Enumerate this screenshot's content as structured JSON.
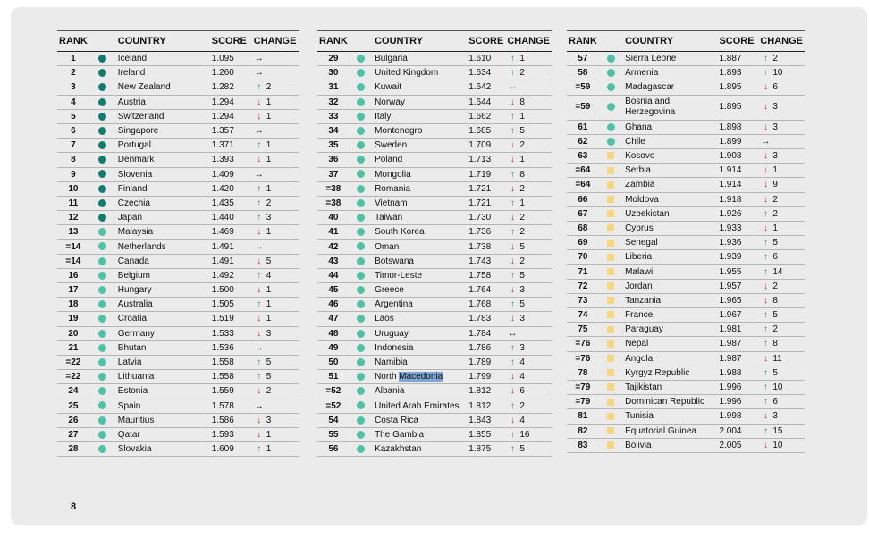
{
  "headers": {
    "rank": "RANK",
    "country": "COUNTRY",
    "score": "SCORE",
    "change": "CHANGE"
  },
  "colors": {
    "dark": "#157a6e",
    "mid": "#4fc1a6",
    "yellow": "#f6d77f",
    "up": "#2e8b57",
    "down": "#c62828"
  },
  "icons": {
    "up": "↑",
    "down": "↓",
    "same": "↔"
  },
  "page_number": "8",
  "columns": [
    [
      {
        "rank": "1",
        "country": "Iceland",
        "score": "1.095",
        "dir": "same",
        "change": "",
        "marker": "dark"
      },
      {
        "rank": "2",
        "country": "Ireland",
        "score": "1.260",
        "dir": "same",
        "change": "",
        "marker": "dark"
      },
      {
        "rank": "3",
        "country": "New Zealand",
        "score": "1.282",
        "dir": "up",
        "change": "2",
        "marker": "dark"
      },
      {
        "rank": "4",
        "country": "Austria",
        "score": "1.294",
        "dir": "down",
        "change": "1",
        "marker": "dark"
      },
      {
        "rank": "5",
        "country": "Switzerland",
        "score": "1.294",
        "dir": "down",
        "change": "1",
        "marker": "dark"
      },
      {
        "rank": "6",
        "country": "Singapore",
        "score": "1.357",
        "dir": "same",
        "change": "",
        "marker": "dark"
      },
      {
        "rank": "7",
        "country": "Portugal",
        "score": "1.371",
        "dir": "up",
        "change": "1",
        "marker": "dark"
      },
      {
        "rank": "8",
        "country": "Denmark",
        "score": "1.393",
        "dir": "down",
        "change": "1",
        "marker": "dark"
      },
      {
        "rank": "9",
        "country": "Slovenia",
        "score": "1.409",
        "dir": "same",
        "change": "",
        "marker": "dark"
      },
      {
        "rank": "10",
        "country": "Finland",
        "score": "1.420",
        "dir": "up",
        "change": "1",
        "marker": "dark"
      },
      {
        "rank": "11",
        "country": "Czechia",
        "score": "1.435",
        "dir": "up",
        "change": "2",
        "marker": "dark"
      },
      {
        "rank": "12",
        "country": "Japan",
        "score": "1.440",
        "dir": "up",
        "change": "3",
        "marker": "dark"
      },
      {
        "rank": "13",
        "country": "Malaysia",
        "score": "1.469",
        "dir": "down",
        "change": "1",
        "marker": "mid"
      },
      {
        "rank": "=14",
        "country": "Netherlands",
        "score": "1.491",
        "dir": "same",
        "change": "",
        "marker": "mid"
      },
      {
        "rank": "=14",
        "country": "Canada",
        "score": "1.491",
        "dir": "down",
        "change": "5",
        "marker": "mid"
      },
      {
        "rank": "16",
        "country": "Belgium",
        "score": "1.492",
        "dir": "up",
        "change": "4",
        "marker": "mid"
      },
      {
        "rank": "17",
        "country": "Hungary",
        "score": "1.500",
        "dir": "down",
        "change": "1",
        "marker": "mid"
      },
      {
        "rank": "18",
        "country": "Australia",
        "score": "1.505",
        "dir": "up",
        "change": "1",
        "marker": "mid"
      },
      {
        "rank": "19",
        "country": "Croatia",
        "score": "1.519",
        "dir": "down",
        "change": "1",
        "marker": "mid"
      },
      {
        "rank": "20",
        "country": "Germany",
        "score": "1.533",
        "dir": "down",
        "change": "3",
        "marker": "mid"
      },
      {
        "rank": "21",
        "country": "Bhutan",
        "score": "1.536",
        "dir": "same",
        "change": "",
        "marker": "mid"
      },
      {
        "rank": "=22",
        "country": "Latvia",
        "score": "1.558",
        "dir": "up",
        "change": "5",
        "marker": "mid"
      },
      {
        "rank": "=22",
        "country": "Lithuania",
        "score": "1.558",
        "dir": "up",
        "change": "5",
        "marker": "mid"
      },
      {
        "rank": "24",
        "country": "Estonia",
        "score": "1.559",
        "dir": "down",
        "change": "2",
        "marker": "mid"
      },
      {
        "rank": "25",
        "country": "Spain",
        "score": "1.578",
        "dir": "same",
        "change": "",
        "marker": "mid"
      },
      {
        "rank": "26",
        "country": "Mauritius",
        "score": "1.586",
        "dir": "down",
        "change": "3",
        "marker": "mid"
      },
      {
        "rank": "27",
        "country": "Qatar",
        "score": "1.593",
        "dir": "down",
        "change": "1",
        "marker": "mid"
      },
      {
        "rank": "28",
        "country": "Slovakia",
        "score": "1.609",
        "dir": "up",
        "change": "1",
        "marker": "mid"
      }
    ],
    [
      {
        "rank": "29",
        "country": "Bulgaria",
        "score": "1.610",
        "dir": "up",
        "change": "1",
        "marker": "mid"
      },
      {
        "rank": "30",
        "country": "United Kingdom",
        "score": "1.634",
        "dir": "up",
        "change": "2",
        "marker": "mid"
      },
      {
        "rank": "31",
        "country": "Kuwait",
        "score": "1.642",
        "dir": "same",
        "change": "",
        "marker": "mid"
      },
      {
        "rank": "32",
        "country": "Norway",
        "score": "1.644",
        "dir": "down",
        "change": "8",
        "marker": "mid"
      },
      {
        "rank": "33",
        "country": "Italy",
        "score": "1.662",
        "dir": "up",
        "change": "1",
        "marker": "mid"
      },
      {
        "rank": "34",
        "country": "Montenegro",
        "score": "1.685",
        "dir": "up",
        "change": "5",
        "marker": "mid"
      },
      {
        "rank": "35",
        "country": "Sweden",
        "score": "1.709",
        "dir": "down",
        "change": "2",
        "marker": "mid"
      },
      {
        "rank": "36",
        "country": "Poland",
        "score": "1.713",
        "dir": "down",
        "change": "1",
        "marker": "mid"
      },
      {
        "rank": "37",
        "country": "Mongolia",
        "score": "1.719",
        "dir": "up",
        "change": "8",
        "marker": "mid"
      },
      {
        "rank": "=38",
        "country": "Romania",
        "score": "1.721",
        "dir": "down",
        "change": "2",
        "marker": "mid"
      },
      {
        "rank": "=38",
        "country": "Vietnam",
        "score": "1.721",
        "dir": "up",
        "change": "1",
        "marker": "mid"
      },
      {
        "rank": "40",
        "country": "Taiwan",
        "score": "1.730",
        "dir": "down",
        "change": "2",
        "marker": "mid"
      },
      {
        "rank": "41",
        "country": "South Korea",
        "score": "1.736",
        "dir": "up",
        "change": "2",
        "marker": "mid"
      },
      {
        "rank": "42",
        "country": "Oman",
        "score": "1.738",
        "dir": "down",
        "change": "5",
        "marker": "mid"
      },
      {
        "rank": "43",
        "country": "Botswana",
        "score": "1.743",
        "dir": "down",
        "change": "2",
        "marker": "mid"
      },
      {
        "rank": "44",
        "country": "Timor-Leste",
        "score": "1.758",
        "dir": "up",
        "change": "5",
        "marker": "mid"
      },
      {
        "rank": "45",
        "country": "Greece",
        "score": "1.764",
        "dir": "down",
        "change": "3",
        "marker": "mid"
      },
      {
        "rank": "46",
        "country": "Argentina",
        "score": "1.768",
        "dir": "up",
        "change": "5",
        "marker": "mid"
      },
      {
        "rank": "47",
        "country": "Laos",
        "score": "1.783",
        "dir": "down",
        "change": "3",
        "marker": "mid"
      },
      {
        "rank": "48",
        "country": "Uruguay",
        "score": "1.784",
        "dir": "same",
        "change": "",
        "marker": "mid"
      },
      {
        "rank": "49",
        "country": "Indonesia",
        "score": "1.786",
        "dir": "up",
        "change": "3",
        "marker": "mid"
      },
      {
        "rank": "50",
        "country": "Namibia",
        "score": "1.789",
        "dir": "up",
        "change": "4",
        "marker": "mid"
      },
      {
        "rank": "51",
        "country": "North Macedonia",
        "country_a": "North ",
        "country_b": "Macedonia",
        "score": "1.799",
        "dir": "down",
        "change": "4",
        "marker": "mid"
      },
      {
        "rank": "=52",
        "country": "Albania",
        "score": "1.812",
        "dir": "down",
        "change": "6",
        "marker": "mid"
      },
      {
        "rank": "=52",
        "country": "United Arab Emirates",
        "score": "1.812",
        "dir": "up",
        "change": "2",
        "marker": "mid"
      },
      {
        "rank": "54",
        "country": "Costa Rica",
        "score": "1.843",
        "dir": "down",
        "change": "4",
        "marker": "mid"
      },
      {
        "rank": "55",
        "country": "The Gambia",
        "score": "1.855",
        "dir": "up",
        "change": "16",
        "marker": "mid"
      },
      {
        "rank": "56",
        "country": "Kazakhstan",
        "score": "1.875",
        "dir": "up",
        "change": "5",
        "marker": "mid"
      }
    ],
    [
      {
        "rank": "57",
        "country": "Sierra Leone",
        "score": "1.887",
        "dir": "up",
        "change": "2",
        "marker": "mid"
      },
      {
        "rank": "58",
        "country": "Armenia",
        "score": "1.893",
        "dir": "up",
        "change": "10",
        "marker": "mid"
      },
      {
        "rank": "=59",
        "country": "Madagascar",
        "score": "1.895",
        "dir": "down",
        "change": "6",
        "marker": "mid"
      },
      {
        "rank": "=59",
        "country": "Bosnia and Herzegovina",
        "score": "1.895",
        "dir": "down",
        "change": "3",
        "marker": "mid",
        "tall": true
      },
      {
        "rank": "61",
        "country": "Ghana",
        "score": "1.898",
        "dir": "down",
        "change": "3",
        "marker": "mid"
      },
      {
        "rank": "62",
        "country": "Chile",
        "score": "1.899",
        "dir": "same",
        "change": "",
        "marker": "mid"
      },
      {
        "rank": "63",
        "country": "Kosovo",
        "score": "1.908",
        "dir": "down",
        "change": "3",
        "marker": "yellow"
      },
      {
        "rank": "=64",
        "country": "Serbia",
        "score": "1.914",
        "dir": "down",
        "change": "1",
        "marker": "yellow"
      },
      {
        "rank": "=64",
        "country": "Zambia",
        "score": "1.914",
        "dir": "down",
        "change": "9",
        "marker": "yellow"
      },
      {
        "rank": "66",
        "country": "Moldova",
        "score": "1.918",
        "dir": "down",
        "change": "2",
        "marker": "yellow"
      },
      {
        "rank": "67",
        "country": "Uzbekistan",
        "score": "1.926",
        "dir": "up",
        "change": "2",
        "marker": "yellow"
      },
      {
        "rank": "68",
        "country": "Cyprus",
        "score": "1.933",
        "dir": "down",
        "change": "1",
        "marker": "yellow"
      },
      {
        "rank": "69",
        "country": "Senegal",
        "score": "1.936",
        "dir": "up",
        "change": "5",
        "marker": "yellow"
      },
      {
        "rank": "70",
        "country": "Liberia",
        "score": "1.939",
        "dir": "up",
        "change": "6",
        "marker": "yellow"
      },
      {
        "rank": "71",
        "country": "Malawi",
        "score": "1.955",
        "dir": "up",
        "change": "14",
        "marker": "yellow"
      },
      {
        "rank": "72",
        "country": "Jordan",
        "score": "1.957",
        "dir": "down",
        "change": "2",
        "marker": "yellow"
      },
      {
        "rank": "73",
        "country": "Tanzania",
        "score": "1.965",
        "dir": "down",
        "change": "8",
        "marker": "yellow"
      },
      {
        "rank": "74",
        "country": "France",
        "score": "1.967",
        "dir": "up",
        "change": "5",
        "marker": "yellow"
      },
      {
        "rank": "75",
        "country": "Paraguay",
        "score": "1.981",
        "dir": "up",
        "change": "2",
        "marker": "yellow"
      },
      {
        "rank": "=76",
        "country": "Nepal",
        "score": "1.987",
        "dir": "up",
        "change": "8",
        "marker": "yellow"
      },
      {
        "rank": "=76",
        "country": "Angola",
        "score": "1.987",
        "dir": "down",
        "change": "11",
        "marker": "yellow"
      },
      {
        "rank": "78",
        "country": "Kyrgyz Republic",
        "score": "1.988",
        "dir": "up",
        "change": "5",
        "marker": "yellow"
      },
      {
        "rank": "=79",
        "country": "Tajikistan",
        "score": "1.996",
        "dir": "up",
        "change": "10",
        "marker": "yellow"
      },
      {
        "rank": "=79",
        "country": "Dominican Republic",
        "score": "1.996",
        "dir": "up",
        "change": "6",
        "marker": "yellow"
      },
      {
        "rank": "81",
        "country": "Tunisia",
        "score": "1.998",
        "dir": "down",
        "change": "3",
        "marker": "yellow"
      },
      {
        "rank": "82",
        "country": "Equatorial Guinea",
        "score": "2.004",
        "dir": "up",
        "change": "15",
        "marker": "yellow"
      },
      {
        "rank": "83",
        "country": "Bolivia",
        "score": "2.005",
        "dir": "down",
        "change": "10",
        "marker": "yellow"
      }
    ]
  ]
}
